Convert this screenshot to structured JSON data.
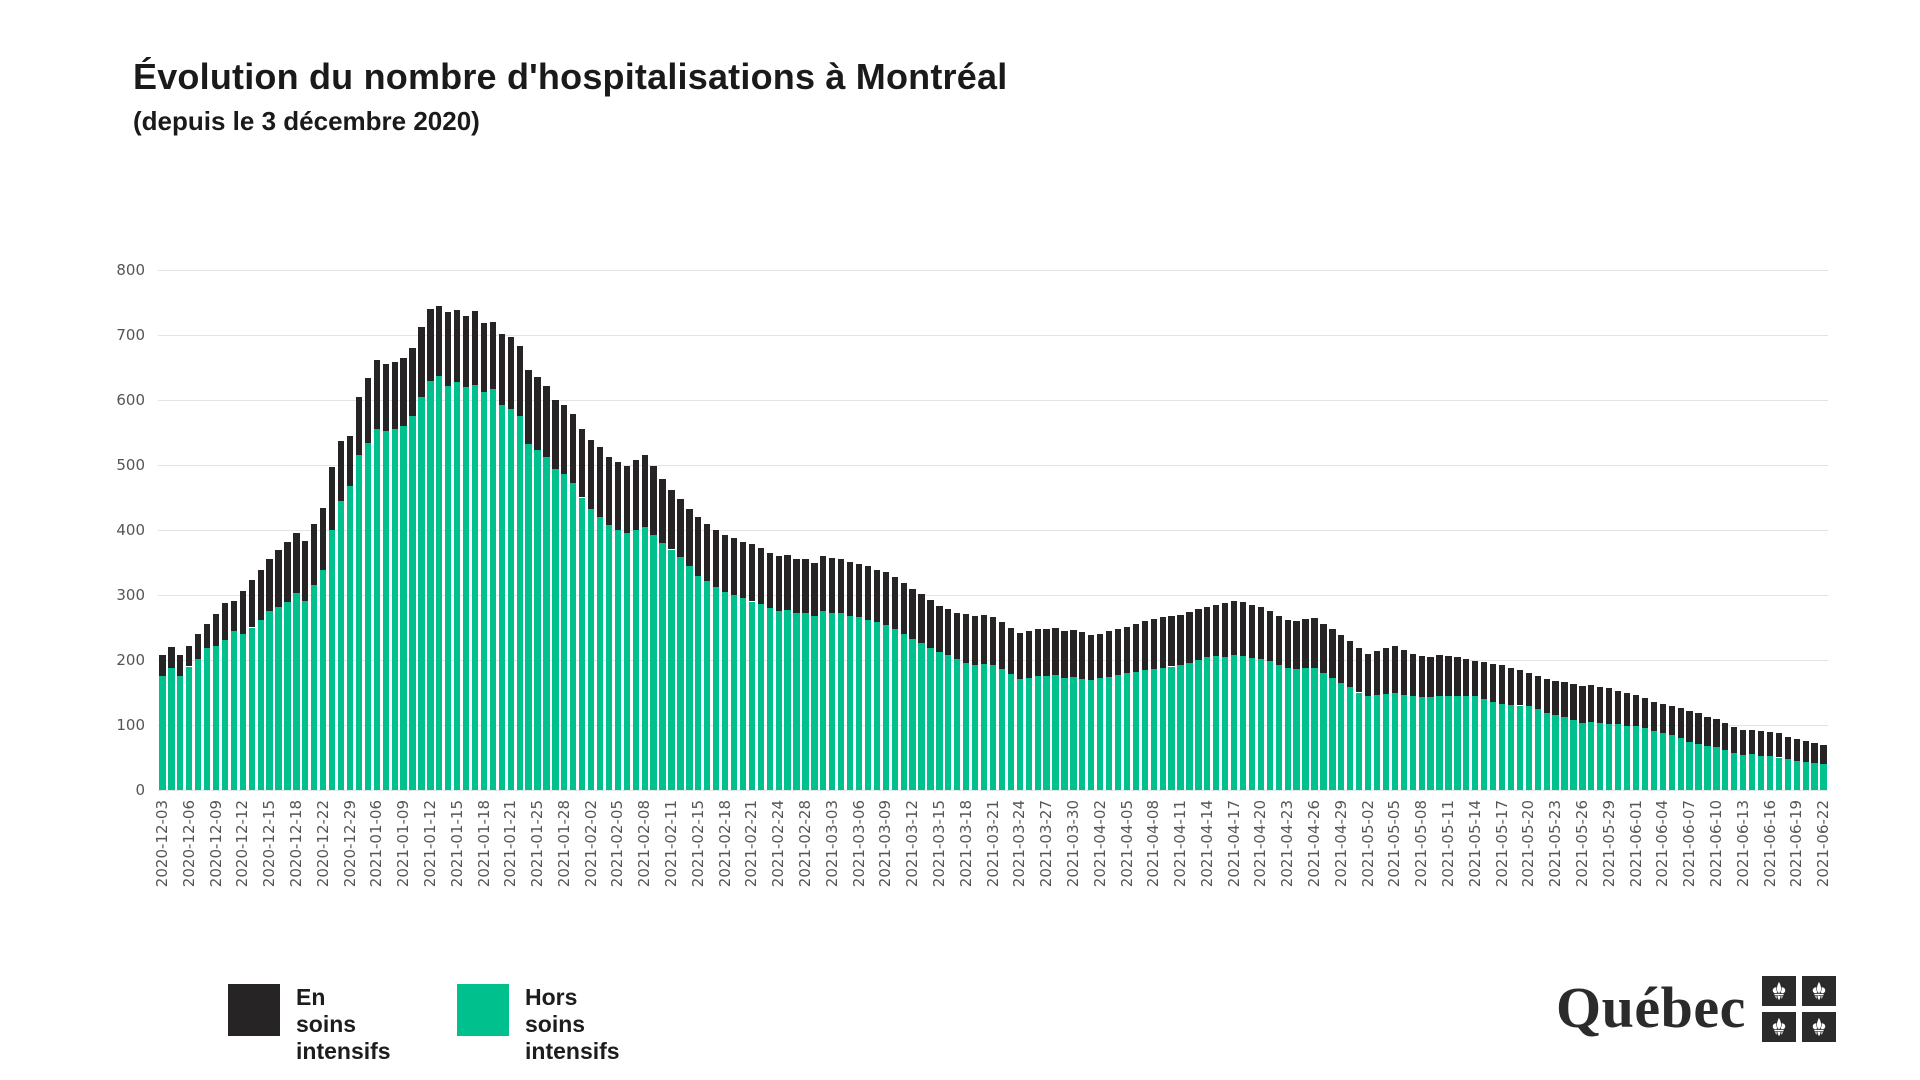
{
  "logo": {
    "text": "Québec"
  },
  "legend": {
    "position": "bottom-left"
  },
  "colors": {
    "background": "#ffffff",
    "icu_black": "#262424",
    "hors_green": "#00C18E",
    "grid": "#e3e3e3",
    "tick_text": "#555555",
    "title_text": "#1a1a1a",
    "logo_dark": "#2b2b2b"
  },
  "chart_data": {
    "type": "bar",
    "stacked": true,
    "title": "Évolution du nombre d'hospitalisations à Montréal",
    "subtitle": "(depuis le 3 décembre 2020)",
    "xlabel": "",
    "ylabel": "",
    "ylim": [
      0,
      800
    ],
    "y_ticks": [
      0,
      100,
      200,
      300,
      400,
      500,
      600,
      700,
      800
    ],
    "grid": "horizontal",
    "legend_position": "bottom-left",
    "x_label_every_n_bars": 3,
    "x_tick_labels": [
      "2020-12-03",
      "2020-12-06",
      "2020-12-09",
      "2020-12-12",
      "2020-12-15",
      "2020-12-18",
      "2020-12-22",
      "2020-12-29",
      "2021-01-06",
      "2021-01-09",
      "2021-01-12",
      "2021-01-15",
      "2021-01-18",
      "2021-01-21",
      "2021-01-25",
      "2021-01-28",
      "2021-02-02",
      "2021-02-05",
      "2021-02-08",
      "2021-02-11",
      "2021-02-15",
      "2021-02-18",
      "2021-02-21",
      "2021-02-24",
      "2021-02-28",
      "2021-03-03",
      "2021-03-06",
      "2021-03-09",
      "2021-03-12",
      "2021-03-15",
      "2021-03-18",
      "2021-03-21",
      "2021-03-24",
      "2021-03-27",
      "2021-03-30",
      "2021-04-02",
      "2021-04-05",
      "2021-04-08",
      "2021-04-11",
      "2021-04-14",
      "2021-04-17",
      "2021-04-20",
      "2021-04-23",
      "2021-04-26",
      "2021-04-29",
      "2021-05-02",
      "2021-05-05",
      "2021-05-08",
      "2021-05-11",
      "2021-05-14",
      "2021-05-17",
      "2021-05-20",
      "2021-05-23",
      "2021-05-26",
      "2021-05-29",
      "2021-06-01",
      "2021-06-04",
      "2021-06-07",
      "2021-06-10",
      "2021-06-13",
      "2021-06-16",
      "2021-06-19",
      "2021-06-22"
    ],
    "series": [
      {
        "name": "Hors soins intensifs",
        "color": "#00C18E",
        "stack_order": "bottom",
        "values": [
          175,
          187,
          175,
          190,
          201,
          218,
          222,
          231,
          244,
          240,
          250,
          262,
          275,
          282,
          289,
          303,
          291,
          316,
          338,
          400,
          445,
          468,
          515,
          534,
          556,
          552,
          556,
          560,
          575,
          605,
          630,
          637,
          622,
          628,
          620,
          623,
          612,
          617,
          592,
          586,
          575,
          532,
          523,
          512,
          494,
          486,
          472,
          450,
          432,
          420,
          408,
          400,
          396,
          400,
          405,
          392,
          380,
          370,
          358,
          344,
          330,
          322,
          312,
          305,
          300,
          295,
          290,
          286,
          280,
          276,
          277,
          272,
          272,
          268,
          275,
          273,
          272,
          268,
          266,
          262,
          258,
          254,
          247,
          240,
          232,
          226,
          219,
          213,
          208,
          202,
          196,
          193,
          194,
          192,
          186,
          178,
          171,
          172,
          175,
          176,
          177,
          173,
          174,
          171,
          169,
          172,
          174,
          177,
          180,
          182,
          184,
          186,
          188,
          190,
          192,
          196,
          200,
          204,
          206,
          205,
          207,
          206,
          203,
          201,
          198,
          192,
          188,
          186,
          188,
          187,
          180,
          172,
          165,
          158,
          150,
          144,
          146,
          148,
          149,
          146,
          144,
          143,
          143,
          144,
          144,
          144,
          145,
          145,
          140,
          136,
          132,
          131,
          130,
          129,
          124,
          118,
          115,
          112,
          108,
          103,
          104,
          103,
          102,
          101,
          99,
          98,
          95,
          91,
          88,
          85,
          80,
          74,
          71,
          68,
          66,
          62,
          57,
          54,
          55,
          53,
          52,
          50,
          47,
          45,
          43,
          41,
          40
        ]
      },
      {
        "name": "En soins intensifs",
        "color": "#262424",
        "stack_order": "top",
        "values": [
          33,
          33,
          33,
          32,
          39,
          38,
          49,
          57,
          47,
          66,
          73,
          76,
          80,
          88,
          92,
          92,
          92,
          94,
          96,
          97,
          92,
          77,
          90,
          100,
          106,
          103,
          102,
          104,
          105,
          107,
          110,
          108,
          113,
          110,
          110,
          114,
          106,
          103,
          110,
          111,
          108,
          114,
          113,
          110,
          106,
          106,
          106,
          106,
          106,
          108,
          104,
          105,
          102,
          108,
          111,
          106,
          98,
          92,
          90,
          88,
          90,
          88,
          88,
          87,
          88,
          87,
          88,
          86,
          85,
          84,
          85,
          83,
          84,
          82,
          85,
          84,
          83,
          83,
          82,
          82,
          81,
          81,
          81,
          78,
          78,
          76,
          73,
          70,
          70,
          71,
          75,
          75,
          76,
          74,
          72,
          71,
          71,
          72,
          72,
          72,
          73,
          72,
          72,
          72,
          69,
          68,
          70,
          71,
          71,
          73,
          76,
          77,
          78,
          78,
          78,
          78,
          78,
          77,
          78,
          82,
          84,
          83,
          82,
          81,
          77,
          76,
          74,
          74,
          75,
          77,
          76,
          75,
          73,
          71,
          69,
          66,
          68,
          71,
          73,
          70,
          66,
          63,
          62,
          63,
          62,
          60,
          56,
          54,
          57,
          58,
          60,
          57,
          54,
          51,
          52,
          53,
          53,
          54,
          55,
          57,
          58,
          55,
          55,
          52,
          50,
          48,
          46,
          45,
          44,
          45,
          46,
          47,
          47,
          45,
          43,
          41,
          40,
          38,
          38,
          38,
          38,
          37,
          35,
          33,
          32,
          31,
          30
        ]
      }
    ]
  }
}
